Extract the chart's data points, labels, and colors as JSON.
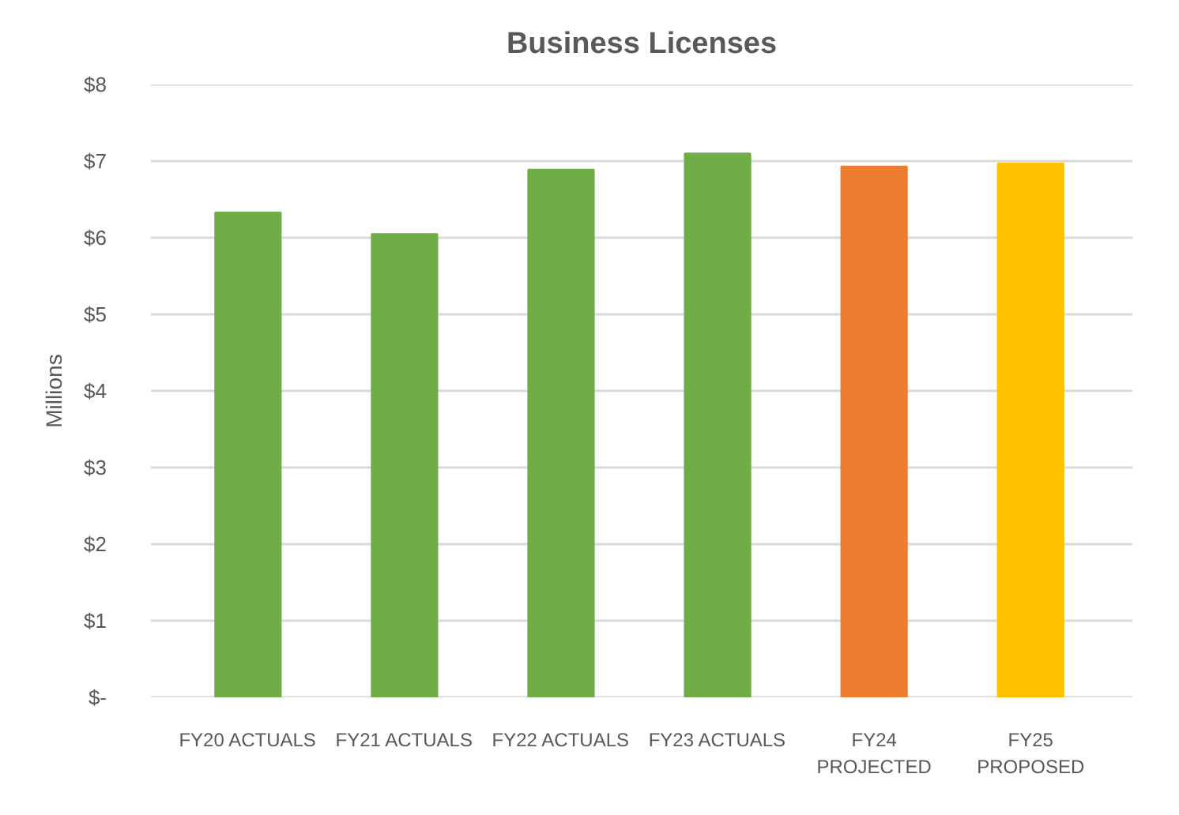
{
  "chart_data": {
    "type": "bar",
    "title": "Business Licenses",
    "ylabel": "Millions",
    "categories": [
      "FY20 ACTUALS",
      "FY21 ACTUALS",
      "FY22 ACTUALS",
      "FY23 ACTUALS",
      "FY24 PROJECTED",
      "FY25 PROPOSED"
    ],
    "values": [
      6.33,
      6.05,
      6.89,
      7.1,
      6.93,
      6.97
    ],
    "colors": [
      "#70ad47",
      "#70ad47",
      "#70ad47",
      "#70ad47",
      "#ed7d31",
      "#ffc000"
    ],
    "ylim": [
      0,
      8
    ],
    "yticks": [
      {
        "value": 0,
        "label": "$-"
      },
      {
        "value": 1,
        "label": "$1"
      },
      {
        "value": 2,
        "label": "$2"
      },
      {
        "value": 3,
        "label": "$3"
      },
      {
        "value": 4,
        "label": "$4"
      },
      {
        "value": 5,
        "label": "$5"
      },
      {
        "value": 6,
        "label": "$6"
      },
      {
        "value": 7,
        "label": "$7"
      },
      {
        "value": 8,
        "label": "$8"
      }
    ],
    "grid": "y"
  }
}
